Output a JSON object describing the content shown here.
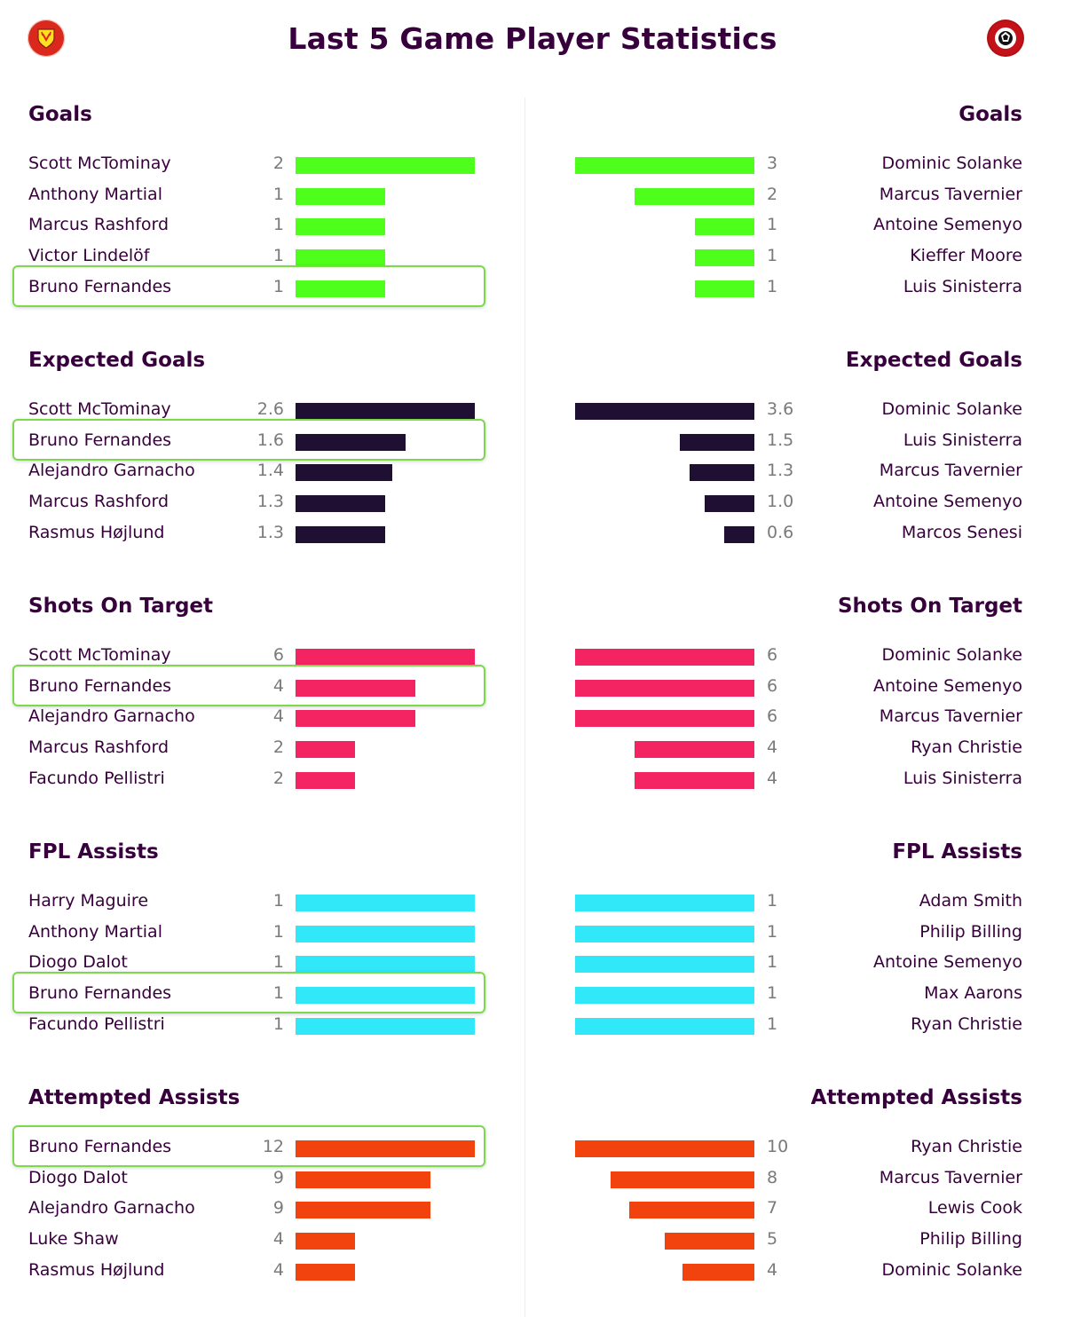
{
  "page": {
    "title": "Last 5 Game Player Statistics",
    "left_crest_icon": "manchester-united-crest-icon",
    "right_crest_icon": "bournemouth-crest-icon",
    "highlight_color": "#7bd94b"
  },
  "chart_data": [
    {
      "type": "bar",
      "stat": "Goals",
      "color": "#4dff1a",
      "xlim": [
        0,
        3
      ],
      "left": {
        "title": "Goals",
        "max": 2,
        "players": [
          {
            "name": "Scott McTominay",
            "value": 2,
            "label": "2"
          },
          {
            "name": "Anthony Martial",
            "value": 1,
            "label": "1"
          },
          {
            "name": "Marcus Rashford",
            "value": 1,
            "label": "1"
          },
          {
            "name": "Victor Lindelöf",
            "value": 1,
            "label": "1"
          },
          {
            "name": "Bruno Fernandes",
            "value": 1,
            "label": "1",
            "highlighted": true
          }
        ]
      },
      "right": {
        "title": "Goals",
        "max": 3,
        "players": [
          {
            "name": "Dominic Solanke",
            "value": 3,
            "label": "3"
          },
          {
            "name": "Marcus Tavernier",
            "value": 2,
            "label": "2"
          },
          {
            "name": "Antoine Semenyo",
            "value": 1,
            "label": "1"
          },
          {
            "name": "Kieffer Moore",
            "value": 1,
            "label": "1"
          },
          {
            "name": "Luis Sinisterra",
            "value": 1,
            "label": "1"
          }
        ]
      }
    },
    {
      "type": "bar",
      "stat": "Expected Goals",
      "color": "#1f1033",
      "left": {
        "title": "Expected Goals",
        "max": 2.6,
        "players": [
          {
            "name": "Scott McTominay",
            "value": 2.6,
            "label": "2.6"
          },
          {
            "name": "Bruno Fernandes",
            "value": 1.6,
            "label": "1.6",
            "highlighted": true
          },
          {
            "name": "Alejandro Garnacho",
            "value": 1.4,
            "label": "1.4"
          },
          {
            "name": "Marcus Rashford",
            "value": 1.3,
            "label": "1.3"
          },
          {
            "name": "Rasmus Højlund",
            "value": 1.3,
            "label": "1.3"
          }
        ]
      },
      "right": {
        "title": "Expected Goals",
        "max": 3.6,
        "players": [
          {
            "name": "Dominic Solanke",
            "value": 3.6,
            "label": "3.6"
          },
          {
            "name": "Luis Sinisterra",
            "value": 1.5,
            "label": "1.5"
          },
          {
            "name": "Marcus Tavernier",
            "value": 1.3,
            "label": "1.3"
          },
          {
            "name": "Antoine Semenyo",
            "value": 1.0,
            "label": "1.0"
          },
          {
            "name": "Marcos Senesi",
            "value": 0.6,
            "label": "0.6"
          }
        ]
      }
    },
    {
      "type": "bar",
      "stat": "Shots On Target",
      "color": "#f42463",
      "left": {
        "title": "Shots On Target",
        "max": 6,
        "players": [
          {
            "name": "Scott McTominay",
            "value": 6,
            "label": "6"
          },
          {
            "name": "Bruno Fernandes",
            "value": 4,
            "label": "4",
            "highlighted": true
          },
          {
            "name": "Alejandro Garnacho",
            "value": 4,
            "label": "4"
          },
          {
            "name": "Marcus Rashford",
            "value": 2,
            "label": "2"
          },
          {
            "name": "Facundo Pellistri",
            "value": 2,
            "label": "2"
          }
        ]
      },
      "right": {
        "title": "Shots On Target",
        "max": 6,
        "players": [
          {
            "name": "Dominic Solanke",
            "value": 6,
            "label": "6"
          },
          {
            "name": "Antoine Semenyo",
            "value": 6,
            "label": "6"
          },
          {
            "name": "Marcus Tavernier",
            "value": 6,
            "label": "6"
          },
          {
            "name": "Ryan Christie",
            "value": 4,
            "label": "4"
          },
          {
            "name": "Luis Sinisterra",
            "value": 4,
            "label": "4"
          }
        ]
      }
    },
    {
      "type": "bar",
      "stat": "FPL Assists",
      "color": "#30e8f8",
      "left": {
        "title": "FPL Assists",
        "max": 1,
        "players": [
          {
            "name": "Harry Maguire",
            "value": 1,
            "label": "1"
          },
          {
            "name": "Anthony Martial",
            "value": 1,
            "label": "1"
          },
          {
            "name": "Diogo Dalot",
            "value": 1,
            "label": "1"
          },
          {
            "name": "Bruno Fernandes",
            "value": 1,
            "label": "1",
            "highlighted": true
          },
          {
            "name": "Facundo Pellistri",
            "value": 1,
            "label": "1"
          }
        ]
      },
      "right": {
        "title": "FPL Assists",
        "max": 1,
        "players": [
          {
            "name": "Adam Smith",
            "value": 1,
            "label": "1"
          },
          {
            "name": "Philip Billing",
            "value": 1,
            "label": "1"
          },
          {
            "name": "Antoine Semenyo",
            "value": 1,
            "label": "1"
          },
          {
            "name": "Max Aarons",
            "value": 1,
            "label": "1"
          },
          {
            "name": "Ryan Christie",
            "value": 1,
            "label": "1"
          }
        ]
      }
    },
    {
      "type": "bar",
      "stat": "Attempted Assists",
      "color": "#f2430f",
      "left": {
        "title": "Attempted Assists",
        "max": 12,
        "players": [
          {
            "name": "Bruno Fernandes",
            "value": 12,
            "label": "12",
            "highlighted": true
          },
          {
            "name": "Diogo Dalot",
            "value": 9,
            "label": "9"
          },
          {
            "name": "Alejandro Garnacho",
            "value": 9,
            "label": "9"
          },
          {
            "name": "Luke Shaw",
            "value": 4,
            "label": "4"
          },
          {
            "name": "Rasmus Højlund",
            "value": 4,
            "label": "4"
          }
        ]
      },
      "right": {
        "title": "Attempted Assists",
        "max": 10,
        "players": [
          {
            "name": "Ryan Christie",
            "value": 10,
            "label": "10"
          },
          {
            "name": "Marcus Tavernier",
            "value": 8,
            "label": "8"
          },
          {
            "name": "Lewis Cook",
            "value": 7,
            "label": "7"
          },
          {
            "name": "Philip Billing",
            "value": 5,
            "label": "5"
          },
          {
            "name": "Dominic Solanke",
            "value": 4,
            "label": "4"
          }
        ]
      }
    }
  ]
}
